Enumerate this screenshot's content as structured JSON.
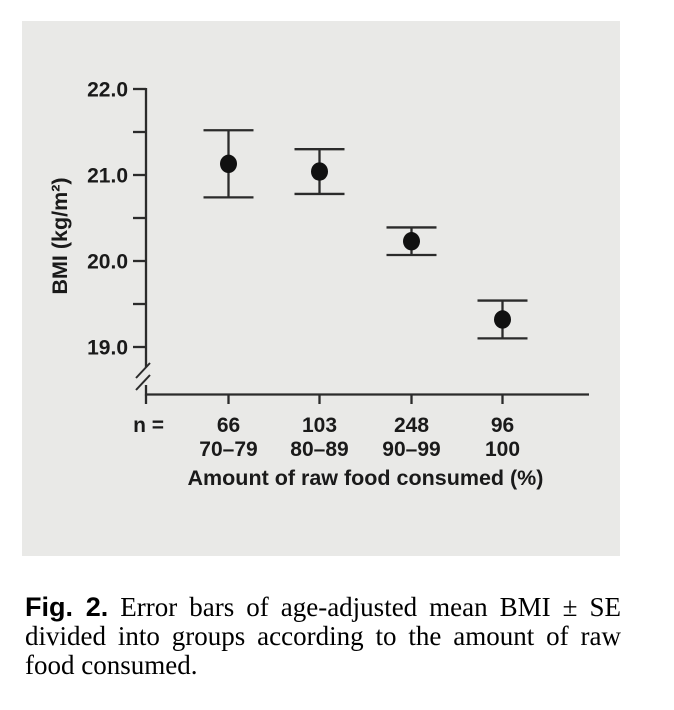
{
  "figure": {
    "caption": {
      "label": "Fig. 2.",
      "text": "Error bars of age-adjusted mean BMI ± SE divided into groups according to the amount of raw food consumed."
    }
  },
  "chart_data": {
    "type": "scatter",
    "subtype": "errorbar-mean-se",
    "title": "",
    "xlabel": "Amount of raw food consumed (%)",
    "ylabel": "BMI (kg/m²)",
    "n_prefix": "n =",
    "categories": [
      "70–79",
      "80–89",
      "90–99",
      "100"
    ],
    "n_values": [
      "66",
      "103",
      "248",
      "96"
    ],
    "series": [
      {
        "name": "Age-adjusted mean BMI ± SE",
        "means": [
          21.13,
          21.04,
          20.23,
          19.32
        ],
        "se": [
          0.39,
          0.26,
          0.16,
          0.22
        ]
      }
    ],
    "y_major_ticks": [
      22.0,
      21.0,
      20.0,
      19.0
    ],
    "y_tick_labels": [
      "22.0",
      "21.0",
      "20.0",
      "19.0"
    ],
    "y_minor_ticks": [
      21.5,
      20.5,
      19.5
    ],
    "ylim_display": [
      19.0,
      22.0
    ],
    "axis_break": true,
    "grid": false,
    "legend": "none",
    "colors": {
      "marker": "#111111",
      "axis": "#2b2b2b",
      "text": "#1a1a1a",
      "panel_bg": "#e9e9e7",
      "page_bg": "#ffffff"
    }
  }
}
